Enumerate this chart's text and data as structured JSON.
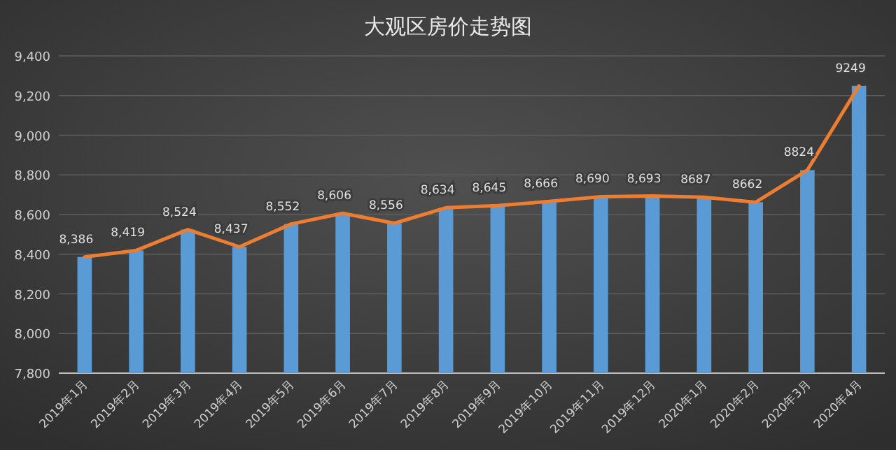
{
  "chart_data": {
    "type": "bar",
    "title": "大观区房价走势图",
    "categories": [
      "2019年1月",
      "2019年2月",
      "2019年3月",
      "2019年4月",
      "2019年5月",
      "2019年6月",
      "2019年7月",
      "2019年8月",
      "2019年9月",
      "2019年10月",
      "2019年11月",
      "2019年12月",
      "2020年1月",
      "2020年2月",
      "2020年3月",
      "2020年4月"
    ],
    "series": [
      {
        "color": "#5b9bd5",
        "values": [
          8386,
          8419,
          8524,
          8437,
          8552,
          8606,
          8556,
          8634,
          8645,
          8666,
          8690,
          8693,
          8687,
          8662,
          8824,
          9249
        ],
        "value_labels": [
          "8,386",
          "8,419",
          "8,524",
          "8,437",
          "8,552",
          "8,606",
          "8,556",
          "8,634",
          "8,645",
          "8,666",
          "8,690",
          "8,693",
          "8687",
          "8662",
          "8824",
          "9249"
        ]
      },
      {
        "type": "line",
        "color": "#ed7d31",
        "values": [
          8386,
          8419,
          8524,
          8437,
          8552,
          8606,
          8556,
          8634,
          8645,
          8666,
          8690,
          8693,
          8687,
          8662,
          8824,
          9249
        ]
      }
    ],
    "ylim": [
      7800,
      9400
    ],
    "yticks": [
      {
        "value": 7800,
        "label": "7,800"
      },
      {
        "value": 8000,
        "label": "8,000"
      },
      {
        "value": 8200,
        "label": "8,200"
      },
      {
        "value": 8400,
        "label": "8,400"
      },
      {
        "value": 8600,
        "label": "8,600"
      },
      {
        "value": 8800,
        "label": "8,800"
      },
      {
        "value": 9000,
        "label": "9,000"
      },
      {
        "value": 9200,
        "label": "9,200"
      },
      {
        "value": 9400,
        "label": "9,400"
      }
    ],
    "grid": "y",
    "marker": "none",
    "line_style": "solid"
  }
}
